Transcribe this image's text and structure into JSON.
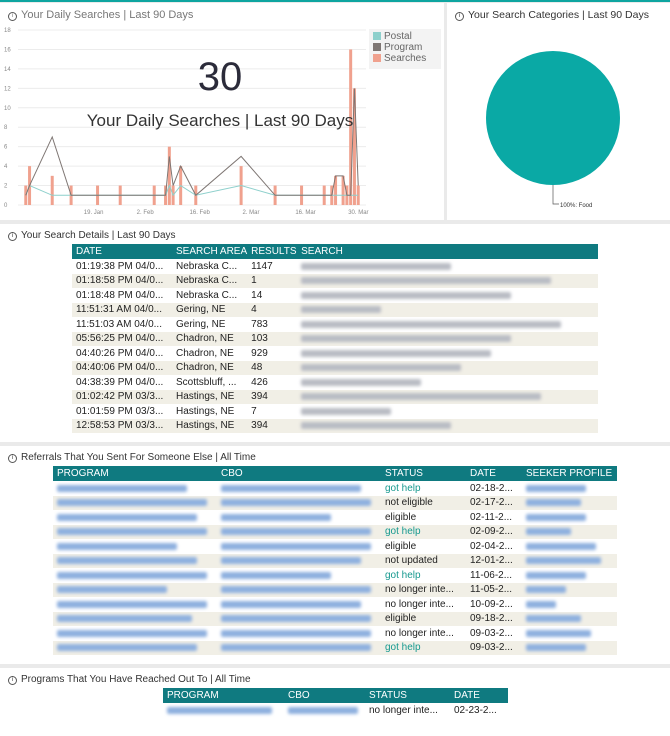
{
  "daily_chart": {
    "header_title": "Your Daily Searches | Last 90 Days",
    "big_number": "30",
    "card_label": "Your Daily Searches | Last 90 Days",
    "legend": [
      {
        "label": "Postal",
        "color": "#8ed0cc"
      },
      {
        "label": "Program",
        "color": "#7e7673"
      },
      {
        "label": "Searches",
        "color": "#f0a18e"
      }
    ]
  },
  "chart_data": {
    "type": "bar",
    "x_tick_labels": [
      "19. Jan",
      "2. Feb",
      "16. Feb",
      "2. Mar",
      "16. Mar",
      "30. Mar"
    ],
    "ylim": [
      0,
      18
    ],
    "yticks": [
      0,
      2,
      4,
      6,
      8,
      10,
      12,
      14,
      16,
      18
    ],
    "grid": true,
    "legend_position": "top-right",
    "series": [
      {
        "name": "Searches",
        "kind": "bar",
        "color": "#f0a18e",
        "x": [
          1,
          2,
          8,
          13,
          20,
          26,
          35,
          38,
          39,
          40,
          42,
          46,
          58,
          67,
          74,
          80,
          82,
          83,
          85,
          86,
          87,
          88,
          89
        ],
        "values": [
          2,
          4,
          3,
          2,
          2,
          2,
          2,
          2,
          6,
          2,
          4,
          2,
          4,
          2,
          2,
          2,
          2,
          3,
          3,
          2,
          16,
          12,
          2
        ]
      },
      {
        "name": "Program",
        "kind": "line",
        "color": "#7e7673",
        "x": [
          1,
          2,
          8,
          13,
          20,
          26,
          35,
          38,
          39,
          40,
          42,
          46,
          58,
          67,
          74,
          80,
          82,
          83,
          85,
          86,
          87,
          88,
          89
        ],
        "values": [
          1,
          2,
          7,
          1,
          1,
          1,
          1,
          1,
          5,
          2,
          4,
          1,
          5,
          1,
          1,
          1,
          1,
          3,
          3,
          1,
          1,
          12,
          2
        ]
      },
      {
        "name": "Postal",
        "kind": "line",
        "color": "#8ed0cc",
        "x": [
          1,
          2,
          8,
          13,
          20,
          26,
          35,
          38,
          39,
          40,
          42,
          46,
          58,
          67,
          74,
          80,
          82,
          83,
          85,
          86,
          87,
          88,
          89
        ],
        "values": [
          1,
          2,
          1,
          1,
          1,
          1,
          1,
          1,
          2,
          1,
          2,
          1,
          2,
          1,
          1,
          1,
          1,
          1,
          1,
          1,
          1,
          1,
          1
        ]
      }
    ]
  },
  "categories_chart": {
    "title": "Your Search Categories | Last 90 Days",
    "slices": [
      {
        "label": "100%: Food",
        "value": 100,
        "color": "#0aa9a5"
      }
    ]
  },
  "search_details": {
    "title": "Your Search Details | Last 90 Days",
    "columns": [
      "DATE",
      "SEARCH AREA",
      "RESULTS",
      "SEARCH"
    ],
    "rows": [
      {
        "date": "01:19:38 PM 04/0...",
        "area": "Nebraska C...",
        "results": "1147"
      },
      {
        "date": "01:18:58 PM 04/0...",
        "area": "Nebraska C...",
        "results": "1"
      },
      {
        "date": "01:18:48 PM 04/0...",
        "area": "Nebraska C...",
        "results": "14"
      },
      {
        "date": "11:51:31 AM 04/0...",
        "area": "Gering, NE",
        "results": "4"
      },
      {
        "date": "11:51:03 AM 04/0...",
        "area": "Gering, NE",
        "results": "783"
      },
      {
        "date": "05:56:25 PM 04/0...",
        "area": "Chadron, NE",
        "results": "103"
      },
      {
        "date": "04:40:26 PM 04/0...",
        "area": "Chadron, NE",
        "results": "929"
      },
      {
        "date": "04:40:06 PM 04/0...",
        "area": "Chadron, NE",
        "results": "48"
      },
      {
        "date": "04:38:39 PM 04/0...",
        "area": "Scottsbluff, ...",
        "results": "426"
      },
      {
        "date": "01:02:42 PM 03/3...",
        "area": "Hastings, NE",
        "results": "394"
      },
      {
        "date": "01:01:59 PM 03/3...",
        "area": "Hastings, NE",
        "results": "7"
      },
      {
        "date": "12:58:53 PM 03/3...",
        "area": "Hastings, NE",
        "results": "394"
      }
    ]
  },
  "referrals": {
    "title": "Referrals That You Sent For Someone Else | All Time",
    "columns": [
      "PROGRAM",
      "CBO",
      "STATUS",
      "DATE",
      "SEEKER PROFILE"
    ],
    "rows": [
      {
        "status": "got help",
        "date": "02-18-2..."
      },
      {
        "status": "not eligible",
        "date": "02-17-2..."
      },
      {
        "status": "eligible",
        "date": "02-11-2..."
      },
      {
        "status": "got help",
        "date": "02-09-2..."
      },
      {
        "status": "eligible",
        "date": "02-04-2..."
      },
      {
        "status": "not updated",
        "date": "12-01-2..."
      },
      {
        "status": "got help",
        "date": "11-06-2..."
      },
      {
        "status": "no longer inte...",
        "date": "11-05-2..."
      },
      {
        "status": "no longer inte...",
        "date": "10-09-2..."
      },
      {
        "status": "eligible",
        "date": "09-18-2..."
      },
      {
        "status": "no longer inte...",
        "date": "09-03-2..."
      },
      {
        "status": "got help",
        "date": "09-03-2..."
      }
    ]
  },
  "programs": {
    "title": "Programs That You Have Reached Out To | All Time",
    "columns": [
      "PROGRAM",
      "CBO",
      "STATUS",
      "DATE"
    ],
    "rows": [
      {
        "status": "no longer inte...",
        "date": "02-23-2..."
      }
    ]
  }
}
